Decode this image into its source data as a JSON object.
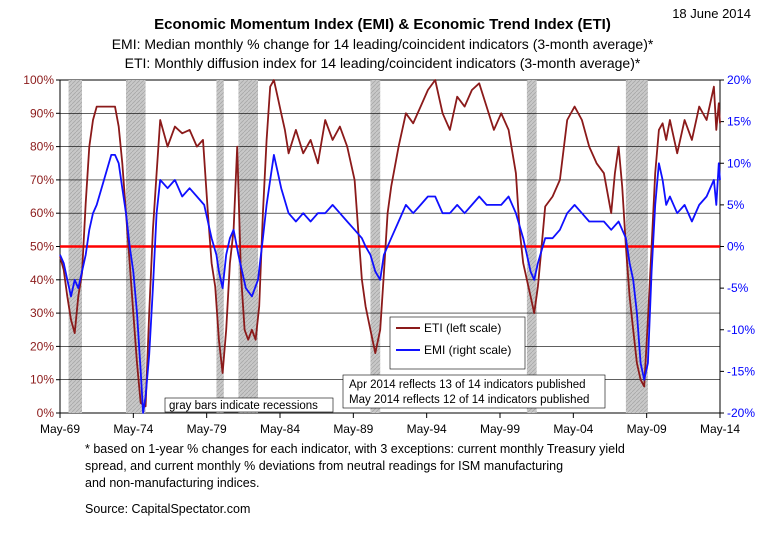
{
  "date": "18 June 2014",
  "title": "Economic Momentum Index (EMI) & Economic Trend Index (ETI)",
  "subtitle_emi": "EMI:  Median monthly % change for 14 leading/coincident indicators (3-month average)*",
  "subtitle_eti": "ETI:  Monthly diffusion index for 14 leading/coincident indicators (3-month average)*",
  "footnote_lines": [
    "* based on 1-year % changes for each indicator, with 3 exceptions: current monthly Treasury yield",
    "spread, and current monthly % deviations from neutral readings for ISM manufacturing",
    "and non-manufacturing  indices."
  ],
  "source": "Source:  CapitalSpectator.com",
  "colors": {
    "eti": "#8b1a1a",
    "emi": "#1010ff",
    "zero_line": "#ff0000",
    "recession": "#c8c8c8",
    "left_axis_text": "#8b1a1a",
    "right_axis_text": "#0000ff"
  },
  "chart_data": {
    "type": "line",
    "x_start": "1969-05",
    "x_end": "2014-05",
    "x_tick_labels": [
      "May-69",
      "May-74",
      "May-79",
      "May-84",
      "May-89",
      "May-94",
      "May-99",
      "May-04",
      "May-09",
      "May-14"
    ],
    "y_left": {
      "label": "ETI (left scale)",
      "range": [
        0,
        100
      ],
      "unit": "%",
      "ticks": [
        "0%",
        "10%",
        "20%",
        "30%",
        "40%",
        "50%",
        "60%",
        "70%",
        "80%",
        "90%",
        "100%"
      ]
    },
    "y_right": {
      "label": "EMI (right scale)",
      "range": [
        -20,
        20
      ],
      "unit": "%",
      "ticks": [
        "-20%",
        "-15%",
        "-10%",
        "-5%",
        "0%",
        "5%",
        "10%",
        "15%",
        "20%"
      ]
    },
    "reference_line": {
      "axis": "left",
      "value": 50
    },
    "recessions": [
      [
        "1969-12",
        "1970-11"
      ],
      [
        "1973-11",
        "1975-03"
      ],
      [
        "1980-01",
        "1980-07"
      ],
      [
        "1981-07",
        "1982-11"
      ],
      [
        "1990-07",
        "1991-03"
      ],
      [
        "2001-03",
        "2001-11"
      ],
      [
        "2007-12",
        "2009-06"
      ]
    ],
    "recession_note": "gray bars indicate recessions",
    "annotations": [
      "Apr 2014 reflects 13 of 14 indicators published",
      "May 2014 reflects 12 of 14 indicators published"
    ],
    "legend": {
      "position": "center-bottom",
      "entries": [
        "ETI (left scale)",
        "EMI (right scale)"
      ]
    },
    "series": [
      {
        "name": "ETI (left scale)",
        "axis": "left",
        "points": [
          [
            "1969-05",
            47
          ],
          [
            "1969-08",
            43
          ],
          [
            "1969-11",
            35
          ],
          [
            "1970-02",
            28
          ],
          [
            "1970-05",
            24
          ],
          [
            "1970-08",
            35
          ],
          [
            "1970-11",
            42
          ],
          [
            "1971-02",
            63
          ],
          [
            "1971-05",
            80
          ],
          [
            "1971-08",
            88
          ],
          [
            "1971-11",
            92
          ],
          [
            "1972-02",
            92
          ],
          [
            "1972-08",
            92
          ],
          [
            "1973-02",
            92
          ],
          [
            "1973-05",
            86
          ],
          [
            "1973-08",
            75
          ],
          [
            "1973-11",
            60
          ],
          [
            "1974-02",
            45
          ],
          [
            "1974-05",
            30
          ],
          [
            "1974-08",
            15
          ],
          [
            "1974-11",
            3
          ],
          [
            "1975-03",
            2
          ],
          [
            "1975-06",
            30
          ],
          [
            "1975-09",
            55
          ],
          [
            "1975-12",
            72
          ],
          [
            "1976-03",
            88
          ],
          [
            "1976-09",
            80
          ],
          [
            "1977-03",
            86
          ],
          [
            "1977-09",
            84
          ],
          [
            "1978-03",
            85
          ],
          [
            "1978-09",
            80
          ],
          [
            "1979-02",
            82
          ],
          [
            "1979-06",
            60
          ],
          [
            "1979-09",
            45
          ],
          [
            "1979-12",
            38
          ],
          [
            "1980-03",
            22
          ],
          [
            "1980-06",
            12
          ],
          [
            "1980-09",
            25
          ],
          [
            "1980-12",
            45
          ],
          [
            "1981-03",
            55
          ],
          [
            "1981-06",
            80
          ],
          [
            "1981-09",
            42
          ],
          [
            "1981-12",
            25
          ],
          [
            "1982-03",
            22
          ],
          [
            "1982-06",
            25
          ],
          [
            "1982-09",
            22
          ],
          [
            "1982-12",
            32
          ],
          [
            "1983-03",
            60
          ],
          [
            "1983-06",
            82
          ],
          [
            "1983-09",
            98
          ],
          [
            "1983-12",
            100
          ],
          [
            "1984-03",
            95
          ],
          [
            "1984-06",
            90
          ],
          [
            "1984-09",
            85
          ],
          [
            "1984-12",
            78
          ],
          [
            "1985-06",
            85
          ],
          [
            "1985-12",
            78
          ],
          [
            "1986-06",
            82
          ],
          [
            "1986-12",
            75
          ],
          [
            "1987-06",
            88
          ],
          [
            "1987-12",
            82
          ],
          [
            "1988-06",
            86
          ],
          [
            "1988-12",
            80
          ],
          [
            "1989-06",
            70
          ],
          [
            "1989-09",
            55
          ],
          [
            "1989-12",
            40
          ],
          [
            "1990-03",
            32
          ],
          [
            "1990-07",
            25
          ],
          [
            "1990-11",
            18
          ],
          [
            "1991-03",
            25
          ],
          [
            "1991-06",
            42
          ],
          [
            "1991-09",
            60
          ],
          [
            "1991-12",
            68
          ],
          [
            "1992-06",
            80
          ],
          [
            "1992-12",
            90
          ],
          [
            "1993-06",
            87
          ],
          [
            "1993-12",
            92
          ],
          [
            "1994-06",
            97
          ],
          [
            "1994-12",
            100
          ],
          [
            "1995-06",
            90
          ],
          [
            "1995-12",
            85
          ],
          [
            "1996-06",
            95
          ],
          [
            "1996-12",
            92
          ],
          [
            "1997-06",
            97
          ],
          [
            "1997-12",
            99
          ],
          [
            "1998-06",
            92
          ],
          [
            "1998-12",
            85
          ],
          [
            "1999-06",
            90
          ],
          [
            "1999-12",
            85
          ],
          [
            "2000-06",
            72
          ],
          [
            "2000-09",
            55
          ],
          [
            "2000-12",
            45
          ],
          [
            "2001-03",
            40
          ],
          [
            "2001-06",
            35
          ],
          [
            "2001-09",
            30
          ],
          [
            "2001-12",
            38
          ],
          [
            "2002-03",
            50
          ],
          [
            "2002-06",
            62
          ],
          [
            "2002-12",
            65
          ],
          [
            "2003-06",
            70
          ],
          [
            "2003-12",
            88
          ],
          [
            "2004-06",
            92
          ],
          [
            "2004-12",
            88
          ],
          [
            "2005-06",
            80
          ],
          [
            "2005-12",
            75
          ],
          [
            "2006-06",
            72
          ],
          [
            "2006-12",
            60
          ],
          [
            "2007-03",
            72
          ],
          [
            "2007-06",
            80
          ],
          [
            "2007-09",
            68
          ],
          [
            "2007-12",
            50
          ],
          [
            "2008-03",
            35
          ],
          [
            "2008-06",
            25
          ],
          [
            "2008-09",
            15
          ],
          [
            "2008-12",
            10
          ],
          [
            "2009-03",
            8
          ],
          [
            "2009-06",
            28
          ],
          [
            "2009-09",
            50
          ],
          [
            "2009-12",
            72
          ],
          [
            "2010-03",
            85
          ],
          [
            "2010-06",
            87
          ],
          [
            "2010-09",
            82
          ],
          [
            "2010-12",
            88
          ],
          [
            "2011-06",
            78
          ],
          [
            "2011-12",
            88
          ],
          [
            "2012-06",
            82
          ],
          [
            "2012-12",
            92
          ],
          [
            "2013-06",
            88
          ],
          [
            "2013-12",
            98
          ],
          [
            "2014-02",
            85
          ],
          [
            "2014-04",
            93
          ],
          [
            "2014-05",
            87
          ]
        ]
      },
      {
        "name": "EMI (right scale)",
        "axis": "right",
        "points": [
          [
            "1969-05",
            -1
          ],
          [
            "1969-08",
            -2
          ],
          [
            "1969-11",
            -4
          ],
          [
            "1970-02",
            -6
          ],
          [
            "1970-05",
            -4
          ],
          [
            "1970-08",
            -5
          ],
          [
            "1970-11",
            -3
          ],
          [
            "1971-02",
            -1
          ],
          [
            "1971-05",
            2
          ],
          [
            "1971-08",
            4
          ],
          [
            "1971-11",
            5
          ],
          [
            "1972-05",
            8
          ],
          [
            "1972-11",
            11
          ],
          [
            "1973-02",
            11
          ],
          [
            "1973-05",
            10
          ],
          [
            "1973-08",
            7
          ],
          [
            "1973-11",
            4
          ],
          [
            "1974-02",
            0
          ],
          [
            "1974-05",
            -3
          ],
          [
            "1974-08",
            -8
          ],
          [
            "1974-11",
            -15
          ],
          [
            "1975-01",
            -20
          ],
          [
            "1975-03",
            -18
          ],
          [
            "1975-06",
            -13
          ],
          [
            "1975-09",
            -5
          ],
          [
            "1975-12",
            4
          ],
          [
            "1976-03",
            8
          ],
          [
            "1976-09",
            7
          ],
          [
            "1977-03",
            8
          ],
          [
            "1977-09",
            6
          ],
          [
            "1978-03",
            7
          ],
          [
            "1978-09",
            6
          ],
          [
            "1979-03",
            5
          ],
          [
            "1979-09",
            1
          ],
          [
            "1980-01",
            -1
          ],
          [
            "1980-03",
            -3
          ],
          [
            "1980-06",
            -5
          ],
          [
            "1980-09",
            -1
          ],
          [
            "1980-12",
            1
          ],
          [
            "1981-03",
            2
          ],
          [
            "1981-07",
            -1
          ],
          [
            "1981-10",
            -3
          ],
          [
            "1982-01",
            -5
          ],
          [
            "1982-06",
            -6
          ],
          [
            "1982-11",
            -4
          ],
          [
            "1983-03",
            1
          ],
          [
            "1983-06",
            5
          ],
          [
            "1983-09",
            8
          ],
          [
            "1983-12",
            11
          ],
          [
            "1984-03",
            9
          ],
          [
            "1984-06",
            7
          ],
          [
            "1984-12",
            4
          ],
          [
            "1985-06",
            3
          ],
          [
            "1985-12",
            4
          ],
          [
            "1986-06",
            3
          ],
          [
            "1986-12",
            4
          ],
          [
            "1987-06",
            4
          ],
          [
            "1987-12",
            5
          ],
          [
            "1988-06",
            4
          ],
          [
            "1988-12",
            3
          ],
          [
            "1989-06",
            2
          ],
          [
            "1989-12",
            1
          ],
          [
            "1990-03",
            0
          ],
          [
            "1990-07",
            -1
          ],
          [
            "1990-11",
            -3
          ],
          [
            "1991-03",
            -4
          ],
          [
            "1991-06",
            -1
          ],
          [
            "1991-12",
            1
          ],
          [
            "1992-06",
            3
          ],
          [
            "1992-12",
            5
          ],
          [
            "1993-06",
            4
          ],
          [
            "1993-12",
            5
          ],
          [
            "1994-06",
            6
          ],
          [
            "1994-12",
            6
          ],
          [
            "1995-06",
            4
          ],
          [
            "1995-12",
            4
          ],
          [
            "1996-06",
            5
          ],
          [
            "1996-12",
            4
          ],
          [
            "1997-06",
            5
          ],
          [
            "1997-12",
            6
          ],
          [
            "1998-06",
            5
          ],
          [
            "1998-12",
            5
          ],
          [
            "1999-06",
            5
          ],
          [
            "1999-12",
            6
          ],
          [
            "2000-06",
            4
          ],
          [
            "2000-12",
            1
          ],
          [
            "2001-03",
            -1
          ],
          [
            "2001-06",
            -3
          ],
          [
            "2001-09",
            -4
          ],
          [
            "2001-12",
            -2
          ],
          [
            "2002-06",
            1
          ],
          [
            "2002-12",
            1
          ],
          [
            "2003-06",
            2
          ],
          [
            "2003-12",
            4
          ],
          [
            "2004-06",
            5
          ],
          [
            "2004-12",
            4
          ],
          [
            "2005-06",
            3
          ],
          [
            "2005-12",
            3
          ],
          [
            "2006-06",
            3
          ],
          [
            "2006-12",
            2
          ],
          [
            "2007-06",
            3
          ],
          [
            "2007-12",
            1
          ],
          [
            "2008-03",
            -2
          ],
          [
            "2008-06",
            -4
          ],
          [
            "2008-09",
            -8
          ],
          [
            "2008-12",
            -14
          ],
          [
            "2009-03",
            -16
          ],
          [
            "2009-06",
            -14
          ],
          [
            "2009-09",
            -3
          ],
          [
            "2009-12",
            5
          ],
          [
            "2010-03",
            10
          ],
          [
            "2010-06",
            8
          ],
          [
            "2010-09",
            5
          ],
          [
            "2010-12",
            6
          ],
          [
            "2011-06",
            4
          ],
          [
            "2011-12",
            5
          ],
          [
            "2012-06",
            3
          ],
          [
            "2012-12",
            5
          ],
          [
            "2013-06",
            6
          ],
          [
            "2013-12",
            8
          ],
          [
            "2014-02",
            5
          ],
          [
            "2014-04",
            10
          ],
          [
            "2014-05",
            8
          ]
        ]
      }
    ]
  }
}
